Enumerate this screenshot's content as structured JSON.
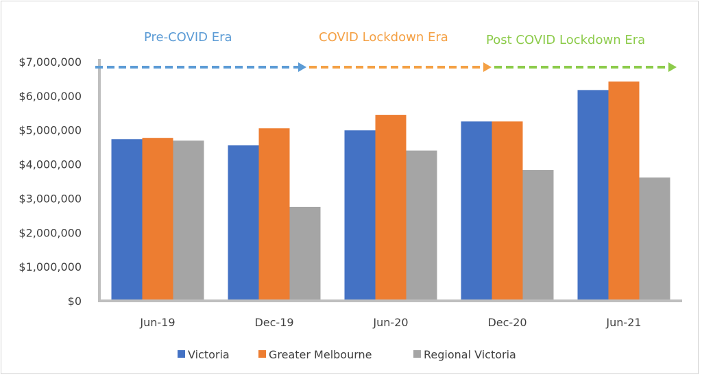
{
  "chart_data": {
    "type": "bar",
    "categories": [
      "Jun-19",
      "Dec-19",
      "Jun-20",
      "Dec-20",
      "Jun-21"
    ],
    "series": [
      {
        "name": "Victoria",
        "color": "#4472C4",
        "values": [
          4730000,
          4550000,
          4990000,
          5250000,
          6170000
        ]
      },
      {
        "name": "Greater Melbourne",
        "color": "#ED7D31",
        "values": [
          4770000,
          5050000,
          5440000,
          5250000,
          6420000
        ]
      },
      {
        "name": "Regional Victoria",
        "color": "#A5A5A5",
        "values": [
          4690000,
          2750000,
          4400000,
          3830000,
          3610000
        ]
      }
    ],
    "y_ticks": [
      "$0",
      "$1,000,000",
      "$2,000,000",
      "$3,000,000",
      "$4,000,000",
      "$5,000,000",
      "$6,000,000",
      "$7,000,000"
    ],
    "ylim": [
      0,
      7000000
    ],
    "grid": false,
    "legend_position": "bottom",
    "annotations": [
      {
        "text": "Pre-COVID Era",
        "color": "#5B9BD5",
        "arrow_from_category": 0,
        "arrow_to_category": 1.6
      },
      {
        "text": "COVID Lockdown Era",
        "color": "#F4A044",
        "arrow_from_category": 1.6,
        "arrow_to_category": 3.2
      },
      {
        "text": "Post COVID Lockdown Era",
        "color": "#8CCB4A",
        "arrow_from_category": 3.2,
        "arrow_to_category": 5
      }
    ]
  }
}
